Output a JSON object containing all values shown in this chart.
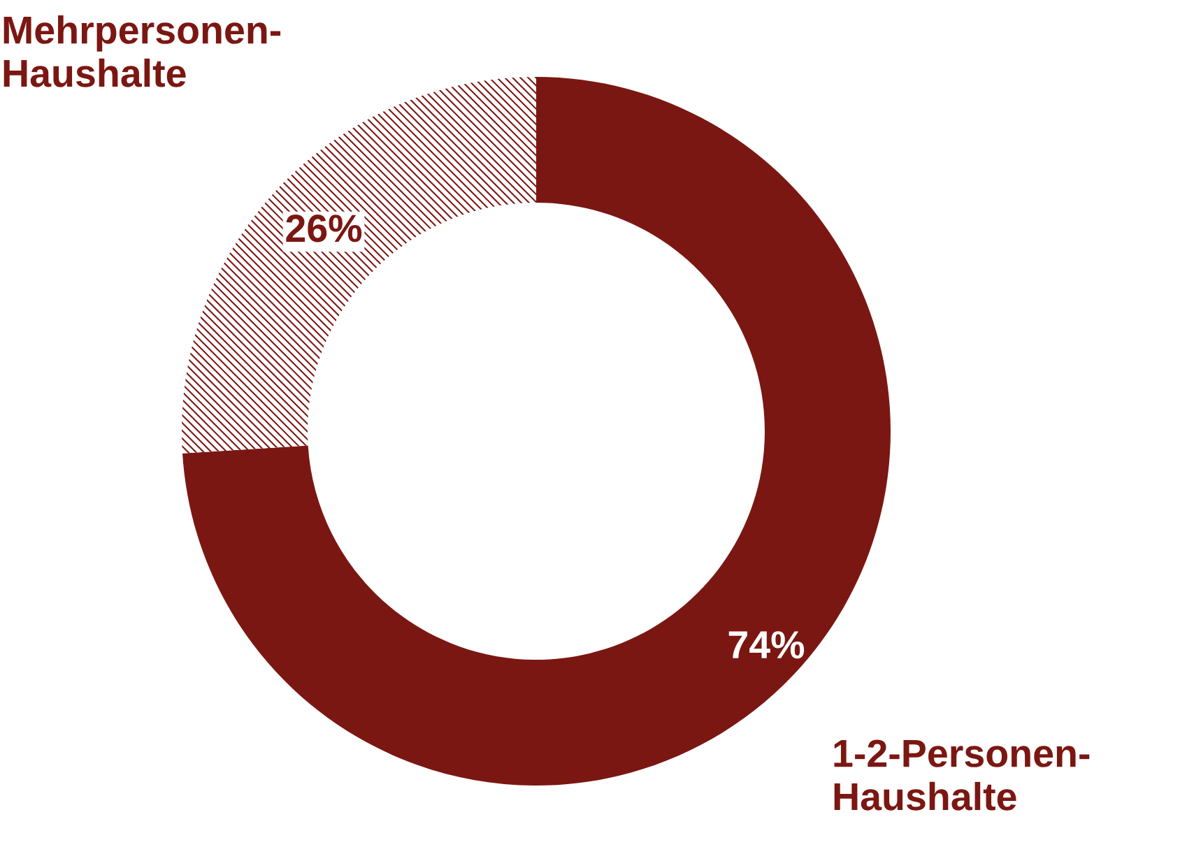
{
  "chart_data": {
    "type": "donut",
    "categories": [
      "1-2-Personen-\nHaushalte",
      "Mehrpersonen-\nHaushalte"
    ],
    "values": [
      74,
      26
    ],
    "value_labels": [
      "74%",
      "26%"
    ],
    "colors": [
      "#7b1712",
      "#7b1712"
    ]
  }
}
